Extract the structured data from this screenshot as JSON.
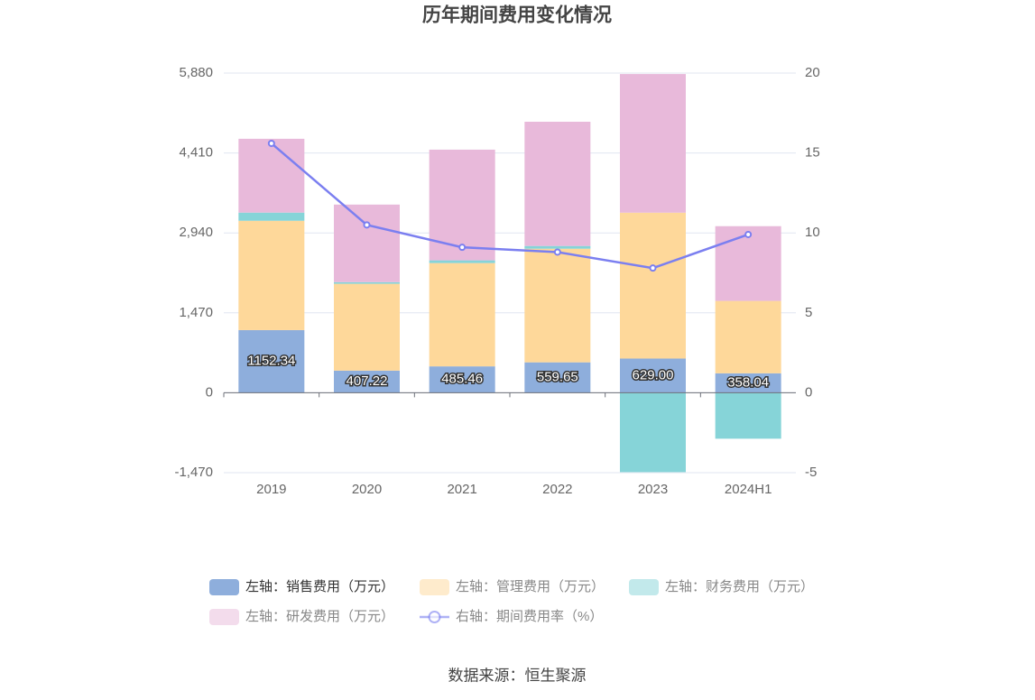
{
  "chart_data": {
    "type": "bar",
    "title": "历年期间费用变化情况",
    "source": "数据来源：恒生聚源",
    "categories": [
      "2019",
      "2020",
      "2021",
      "2022",
      "2023",
      "2024H1"
    ],
    "series": [
      {
        "name": "左轴：销售费用（万元）",
        "color": "#8eaedc",
        "values": [
          1152.34,
          407.22,
          485.46,
          559.65,
          629.0,
          358.04
        ],
        "value_labels": [
          "1152.34",
          "407.22",
          "485.46",
          "559.65",
          "629.00",
          "358.04"
        ]
      },
      {
        "name": "左轴：管理费用（万元）",
        "color": "#fed89a",
        "values": [
          2011,
          1597,
          1900,
          2090,
          2683,
          1331
        ]
      },
      {
        "name": "左轴：财务费用（万元）",
        "color": "#86d4d8",
        "values": [
          150,
          30,
          50,
          50,
          -1460,
          -845
        ]
      },
      {
        "name": "左轴：研发费用（万元）",
        "color": "#e8b9da",
        "values": [
          1358,
          1427,
          2036,
          2285,
          2550,
          1375
        ]
      },
      {
        "name": "右轴：期间费用率（%）",
        "color": "#7b7ff0",
        "type": "line",
        "axis": "y2",
        "values": [
          15.6,
          10.5,
          9.1,
          8.8,
          7.8,
          9.9
        ]
      }
    ],
    "ylim": [
      -1470,
      5880
    ],
    "yticks": [
      {
        "value": -1470,
        "label": "-1,470"
      },
      0,
      {
        "value": 1470,
        "label": "1,470"
      },
      {
        "value": 2940,
        "label": "2,940"
      },
      {
        "value": 4410,
        "label": "4,410"
      },
      {
        "value": 5880,
        "label": "5,880"
      }
    ],
    "y2lim": [
      -5,
      20
    ],
    "y2ticks": [
      -5,
      0,
      5,
      10,
      15,
      20
    ],
    "grid": true
  }
}
